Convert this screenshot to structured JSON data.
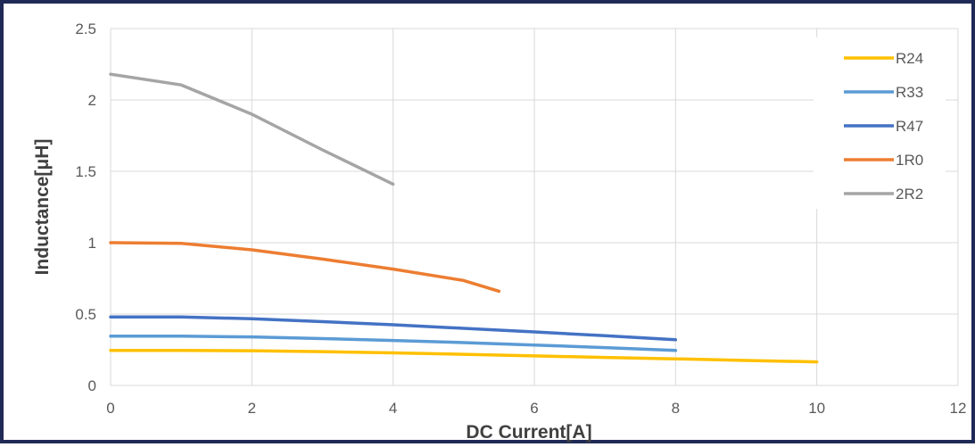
{
  "chart_data": {
    "type": "line",
    "xlabel": "DC Current[A]",
    "ylabel": "Inductance[μH]",
    "xlim": [
      0,
      12
    ],
    "ylim": [
      0,
      2.5
    ],
    "xticks": [
      "0",
      "2",
      "4",
      "6",
      "8",
      "10",
      "12"
    ],
    "yticks": [
      "0",
      "0.5",
      "1",
      "1.5",
      "2",
      "2.5"
    ],
    "grid": true,
    "legend_position": "right",
    "series": [
      {
        "name": "R24",
        "color": "#FFC000",
        "x": [
          0,
          1,
          2,
          3,
          4,
          5,
          6,
          7,
          8,
          9,
          10
        ],
        "y": [
          0.245,
          0.245,
          0.243,
          0.237,
          0.228,
          0.218,
          0.207,
          0.196,
          0.186,
          0.175,
          0.165
        ]
      },
      {
        "name": "R33",
        "color": "#5B9BD5",
        "x": [
          0,
          1,
          2,
          3,
          4,
          5,
          6,
          7,
          8
        ],
        "y": [
          0.345,
          0.345,
          0.34,
          0.328,
          0.315,
          0.3,
          0.283,
          0.265,
          0.245
        ]
      },
      {
        "name": "R47",
        "color": "#4472C4",
        "x": [
          0,
          1,
          2,
          3,
          4,
          5,
          6,
          7,
          8
        ],
        "y": [
          0.48,
          0.48,
          0.467,
          0.447,
          0.425,
          0.4,
          0.375,
          0.348,
          0.32
        ]
      },
      {
        "name": "1R0",
        "color": "#ED7D31",
        "x": [
          0,
          1,
          2,
          3,
          4,
          5,
          5.5
        ],
        "y": [
          1.0,
          0.995,
          0.95,
          0.885,
          0.815,
          0.735,
          0.66
        ]
      },
      {
        "name": "2R2",
        "color": "#A5A5A5",
        "x": [
          0,
          1,
          2,
          3,
          4
        ],
        "y": [
          2.18,
          2.105,
          1.9,
          1.65,
          1.41
        ]
      }
    ]
  }
}
